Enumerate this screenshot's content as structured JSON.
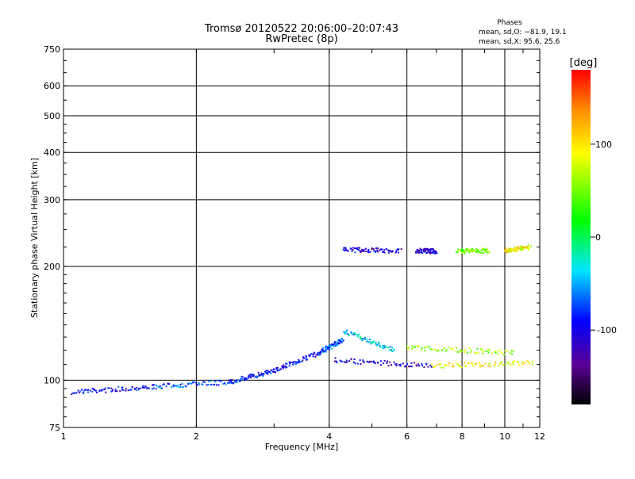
{
  "chart_data": {
    "type": "scatter",
    "title": "Tromsø 20120522 20:06:00–20:07:43",
    "subtitle": "RwPretec (8p)",
    "xlabel": "Frequency [MHz]",
    "ylabel": "Stationary phase Virtual Height [km]",
    "x_scale": "log",
    "y_scale": "log",
    "xlim": [
      1,
      12
    ],
    "ylim": [
      75,
      750
    ],
    "x_ticks": [
      1,
      2,
      4,
      6,
      8,
      10,
      12
    ],
    "y_ticks": [
      75,
      100,
      200,
      300,
      400,
      500,
      600,
      750
    ],
    "grid": true,
    "phase_stats": {
      "heading": "Phases",
      "line_o": "mean, sd,O: −81.9, 19.1",
      "line_x": "mean, sd,X:  95.6, 25.6"
    },
    "colorbar": {
      "label": "[deg]",
      "ticks": [
        100,
        0,
        -100
      ],
      "range": [
        -180,
        180
      ]
    },
    "traces": [
      {
        "x_range": [
          1.05,
          1.6
        ],
        "y_range": [
          93,
          96
        ],
        "phase": -95
      },
      {
        "x_range": [
          1.6,
          2.4
        ],
        "y_range": [
          96,
          99
        ],
        "phase": -75
      },
      {
        "x_range": [
          2.4,
          3.0
        ],
        "y_range": [
          99,
          106
        ],
        "phase": -85
      },
      {
        "x_range": [
          3.0,
          3.8
        ],
        "y_range": [
          106,
          118
        ],
        "phase": -95
      },
      {
        "x_range": [
          3.8,
          4.3
        ],
        "y_range": [
          118,
          128
        ],
        "phase": -70
      },
      {
        "x_range": [
          4.1,
          6.8
        ],
        "y_range": [
          113,
          109
        ],
        "phase": -110
      },
      {
        "x_range": [
          6.8,
          11.6
        ],
        "y_range": [
          109,
          111
        ],
        "phase": 90
      },
      {
        "x_range": [
          4.3,
          5.6
        ],
        "y_range": [
          135,
          120
        ],
        "phase": -40
      },
      {
        "x_range": [
          4.3,
          5.8
        ],
        "y_range": [
          221,
          220
        ],
        "phase": -110
      },
      {
        "x_range": [
          6.3,
          7.0
        ],
        "y_range": [
          220,
          219
        ],
        "phase": -110
      },
      {
        "x_range": [
          7.8,
          9.2
        ],
        "y_range": [
          219,
          220
        ],
        "phase": 50
      },
      {
        "x_range": [
          10.0,
          11.4
        ],
        "y_range": [
          220,
          225
        ],
        "phase": 90
      },
      {
        "x_range": [
          6.0,
          10.5
        ],
        "y_range": [
          122,
          118
        ],
        "phase": 60
      }
    ]
  }
}
